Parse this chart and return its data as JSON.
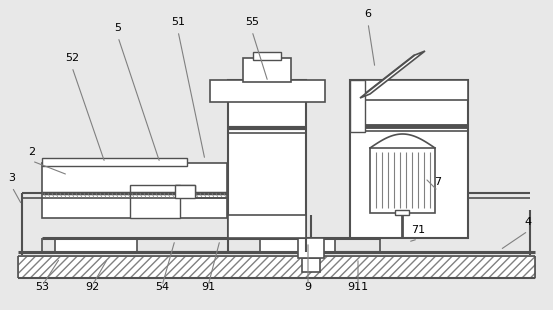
{
  "bg_color": "#e8e8e8",
  "lc": "#808080",
  "dc": "#505050",
  "figsize": [
    5.53,
    3.1
  ],
  "dpi": 100,
  "labels": [
    [
      "2",
      32,
      152
    ],
    [
      "3",
      12,
      178
    ],
    [
      "4",
      528,
      222
    ],
    [
      "5",
      118,
      28
    ],
    [
      "51",
      178,
      22
    ],
    [
      "52",
      72,
      58
    ],
    [
      "53",
      42,
      287
    ],
    [
      "54",
      162,
      287
    ],
    [
      "55",
      252,
      22
    ],
    [
      "6",
      368,
      14
    ],
    [
      "7",
      438,
      182
    ],
    [
      "71",
      418,
      230
    ],
    [
      "9",
      308,
      287
    ],
    [
      "91",
      208,
      287
    ],
    [
      "911",
      358,
      287
    ],
    [
      "92",
      92,
      287
    ]
  ],
  "leader_lines": [
    [
      "2",
      32,
      157,
      68,
      175
    ],
    [
      "3",
      12,
      183,
      22,
      205
    ],
    [
      "4",
      528,
      227,
      500,
      250
    ],
    [
      "5",
      118,
      33,
      160,
      163
    ],
    [
      "51",
      178,
      27,
      205,
      160
    ],
    [
      "52",
      72,
      63,
      105,
      163
    ],
    [
      "53",
      42,
      282,
      60,
      258
    ],
    [
      "54",
      162,
      282,
      175,
      240
    ],
    [
      "55",
      252,
      27,
      268,
      82
    ],
    [
      "6",
      368,
      19,
      375,
      68
    ],
    [
      "7",
      438,
      187,
      425,
      178
    ],
    [
      "71",
      418,
      235,
      408,
      242
    ],
    [
      "9",
      308,
      282,
      308,
      242
    ],
    [
      "91",
      208,
      282,
      220,
      240
    ],
    [
      "911",
      358,
      282,
      358,
      258
    ],
    [
      "92",
      92,
      282,
      108,
      258
    ]
  ]
}
